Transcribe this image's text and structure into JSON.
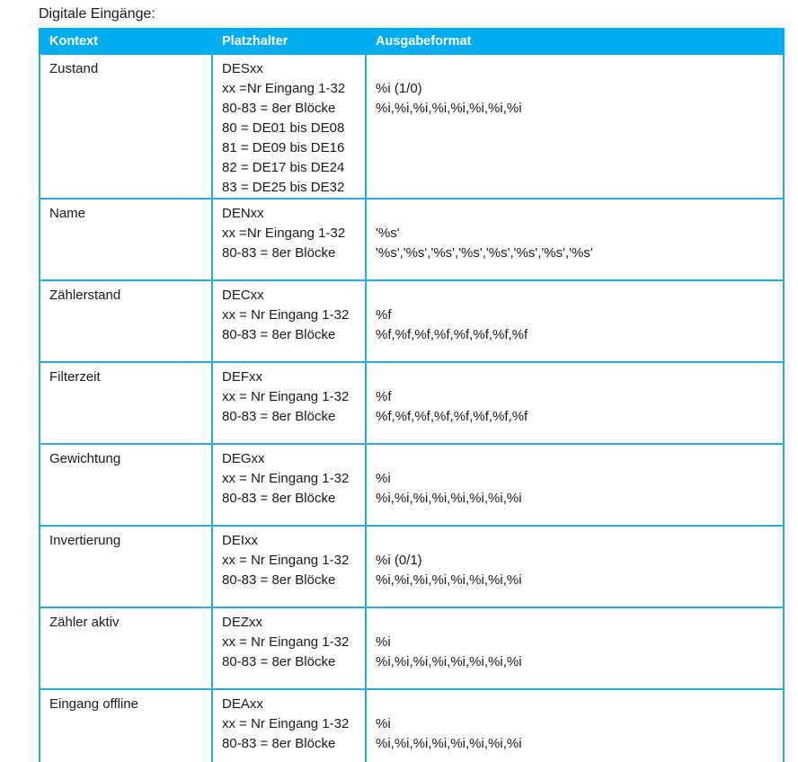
{
  "page_title": "Digitale Eingänge:",
  "colors": {
    "accent": "#00AEEF",
    "border": "#29ABE2",
    "header_text": "#FFFFFF",
    "body_text": "#1A1A1A"
  },
  "table": {
    "headers": [
      "Kontext",
      "Platzhalter",
      "Ausgabeformat"
    ],
    "rows": [
      {
        "kontext": "Zustand",
        "platzhalter": [
          "DESxx",
          "xx =Nr Eingang 1-32",
          "80-83 = 8er Blöcke",
          "80 = DE01 bis DE08",
          "81 = DE09 bis DE16",
          "82 = DE17 bis DE24",
          "83 = DE25 bis DE32"
        ],
        "ausgabeformat": [
          "",
          "%i (1/0)",
          "%i,%i,%i,%i,%i,%i,%i,%i"
        ]
      },
      {
        "kontext": "Name",
        "platzhalter": [
          "DENxx",
          "xx =Nr Eingang 1-32",
          "80-83 = 8er Blöcke"
        ],
        "ausgabeformat": [
          "",
          "'%s'",
          "'%s','%s','%s','%s','%s','%s','%s','%s'"
        ]
      },
      {
        "kontext": "Zählerstand",
        "platzhalter": [
          "DECxx",
          "xx = Nr Eingang 1-32",
          "80-83 = 8er Blöcke"
        ],
        "ausgabeformat": [
          "",
          "%f",
          "%f,%f,%f,%f,%f,%f,%f,%f"
        ]
      },
      {
        "kontext": "Filterzeit",
        "platzhalter": [
          "DEFxx",
          "xx = Nr Eingang 1-32",
          "80-83 = 8er Blöcke"
        ],
        "ausgabeformat": [
          "",
          "%f",
          "%f,%f,%f,%f,%f,%f,%f,%f"
        ]
      },
      {
        "kontext": "Gewichtung",
        "platzhalter": [
          "DEGxx",
          "xx = Nr Eingang 1-32",
          "80-83 = 8er Blöcke"
        ],
        "ausgabeformat": [
          "",
          "%i",
          "%i,%i,%i,%i,%i,%i,%i,%i"
        ]
      },
      {
        "kontext": "Invertierung",
        "platzhalter": [
          "DEIxx",
          "xx = Nr Eingang 1-32",
          "80-83 = 8er Blöcke"
        ],
        "ausgabeformat": [
          "",
          "%i (0/1)",
          "%i,%i,%i,%i,%i,%i,%i,%i"
        ]
      },
      {
        "kontext": "Zähler aktiv",
        "platzhalter": [
          "DEZxx",
          "xx = Nr Eingang 1-32",
          "80-83 = 8er Blöcke"
        ],
        "ausgabeformat": [
          "",
          "%i",
          "%i,%i,%i,%i,%i,%i,%i,%i"
        ]
      },
      {
        "kontext": "Eingang offline",
        "platzhalter": [
          "DEAxx",
          "xx = Nr Eingang 1-32",
          "80-83 = 8er Blöcke"
        ],
        "ausgabeformat": [
          "",
          "%i",
          "%i,%i,%i,%i,%i,%i,%i,%i"
        ]
      }
    ]
  }
}
